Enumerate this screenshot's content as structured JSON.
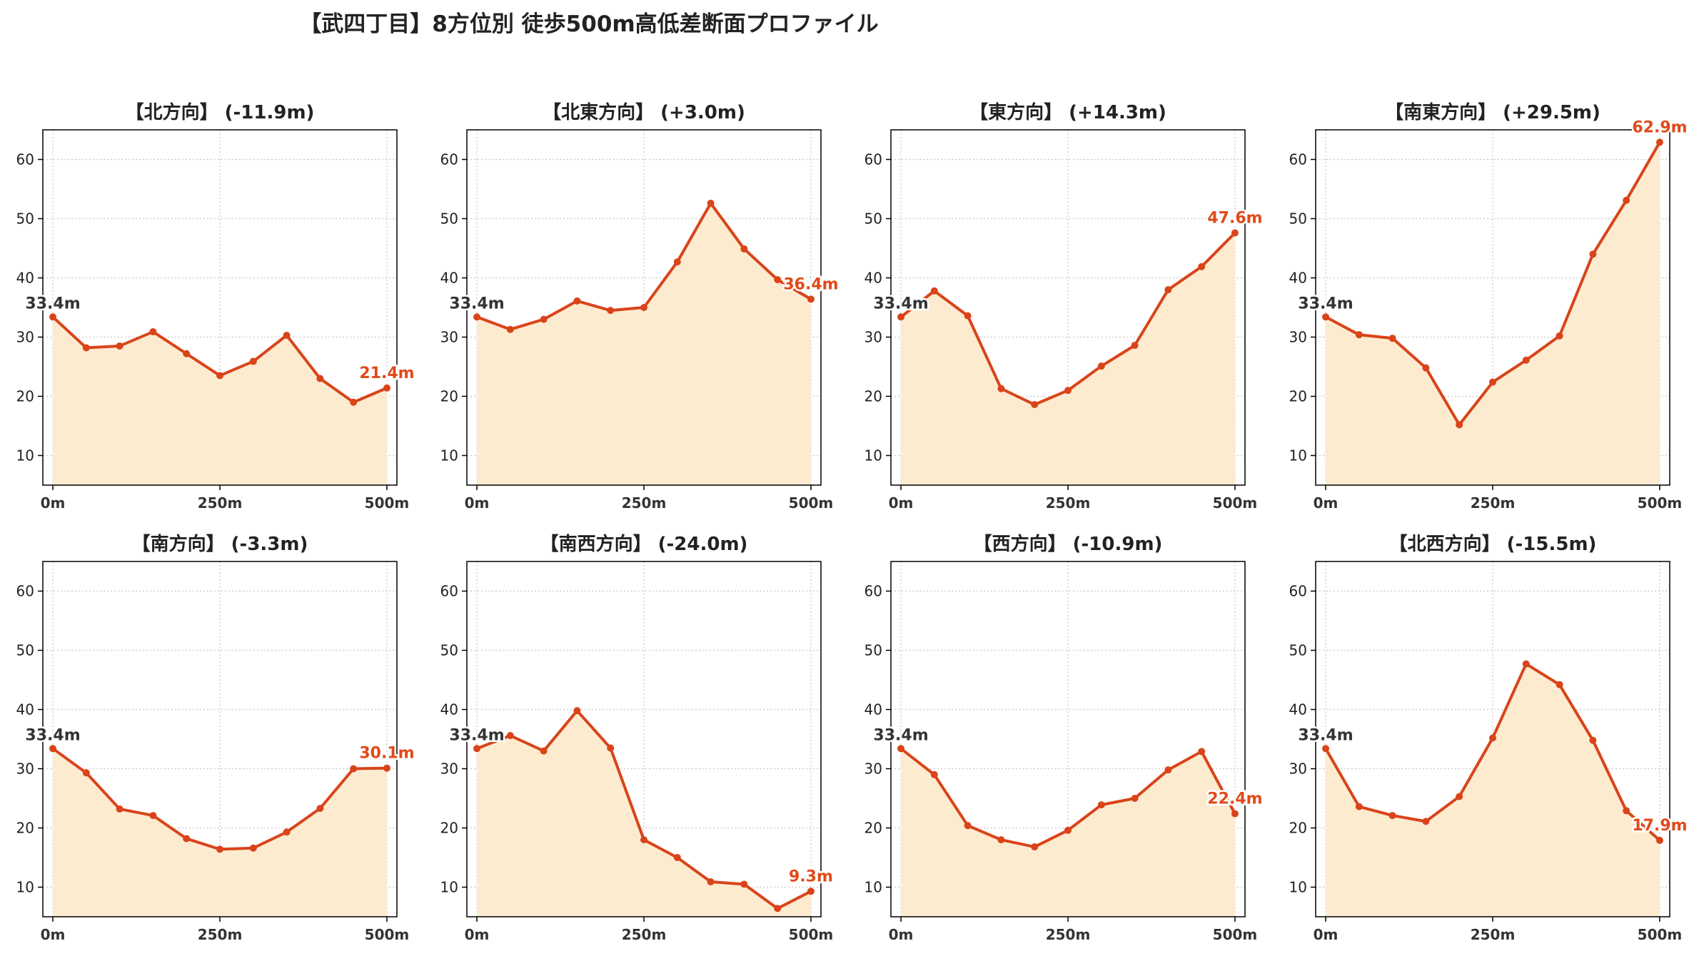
{
  "title": "【武四丁目】8方位別 徒歩500m高低差断面プロファイル",
  "colors": {
    "line": "#d9441a",
    "fill": "#fdebd0",
    "start_label": "#333333",
    "end_label": "#e04a1a",
    "grid": "#c8c8c8"
  },
  "chart_data": [
    {
      "type": "line",
      "title": "【北方向】 (-11.9m)",
      "x": [
        0,
        50,
        100,
        150,
        200,
        250,
        300,
        350,
        400,
        450,
        500
      ],
      "values": [
        33.4,
        28.2,
        28.5,
        30.9,
        27.2,
        23.5,
        25.9,
        30.3,
        23.0,
        19.0,
        21.4
      ],
      "start_label": "33.4m",
      "end_label": "21.4m",
      "xticks": [
        "0m",
        "250m",
        "500m"
      ],
      "yticks": [
        10,
        20,
        30,
        40,
        50,
        60
      ],
      "xlim": [
        -15,
        515
      ],
      "ylim": [
        5,
        65
      ],
      "grid": true
    },
    {
      "type": "line",
      "title": "【北東方向】 (+3.0m)",
      "x": [
        0,
        50,
        100,
        150,
        200,
        250,
        300,
        350,
        400,
        450,
        500
      ],
      "values": [
        33.4,
        31.3,
        33.0,
        36.1,
        34.5,
        35.0,
        42.7,
        52.6,
        44.9,
        39.7,
        36.4
      ],
      "start_label": "33.4m",
      "end_label": "36.4m",
      "xticks": [
        "0m",
        "250m",
        "500m"
      ],
      "yticks": [
        10,
        20,
        30,
        40,
        50,
        60
      ],
      "xlim": [
        -15,
        515
      ],
      "ylim": [
        5,
        65
      ],
      "grid": true
    },
    {
      "type": "line",
      "title": "【東方向】 (+14.3m)",
      "x": [
        0,
        50,
        100,
        150,
        200,
        250,
        300,
        350,
        400,
        450,
        500
      ],
      "values": [
        33.4,
        37.8,
        33.6,
        21.3,
        18.6,
        21.0,
        25.1,
        28.6,
        38.0,
        41.9,
        47.6
      ],
      "start_label": "33.4m",
      "end_label": "47.6m",
      "xticks": [
        "0m",
        "250m",
        "500m"
      ],
      "yticks": [
        10,
        20,
        30,
        40,
        50,
        60
      ],
      "xlim": [
        -15,
        515
      ],
      "ylim": [
        5,
        65
      ],
      "grid": true
    },
    {
      "type": "line",
      "title": "【南東方向】 (+29.5m)",
      "x": [
        0,
        50,
        100,
        150,
        200,
        250,
        300,
        350,
        400,
        450,
        500
      ],
      "values": [
        33.4,
        30.4,
        29.8,
        24.8,
        15.2,
        22.4,
        26.1,
        30.2,
        44.0,
        53.1,
        62.9
      ],
      "start_label": "33.4m",
      "end_label": "62.9m",
      "xticks": [
        "0m",
        "250m",
        "500m"
      ],
      "yticks": [
        10,
        20,
        30,
        40,
        50,
        60
      ],
      "xlim": [
        -15,
        515
      ],
      "ylim": [
        5,
        65
      ],
      "grid": true
    },
    {
      "type": "line",
      "title": "【南方向】 (-3.3m)",
      "x": [
        0,
        50,
        100,
        150,
        200,
        250,
        300,
        350,
        400,
        450,
        500
      ],
      "values": [
        33.4,
        29.3,
        23.2,
        22.1,
        18.2,
        16.4,
        16.6,
        19.3,
        23.3,
        30.0,
        30.1
      ],
      "start_label": "33.4m",
      "end_label": "30.1m",
      "xticks": [
        "0m",
        "250m",
        "500m"
      ],
      "yticks": [
        10,
        20,
        30,
        40,
        50,
        60
      ],
      "xlim": [
        -15,
        515
      ],
      "ylim": [
        5,
        65
      ],
      "grid": true
    },
    {
      "type": "line",
      "title": "【南西方向】 (-24.0m)",
      "x": [
        0,
        50,
        100,
        150,
        200,
        250,
        300,
        350,
        400,
        450,
        500
      ],
      "values": [
        33.4,
        35.6,
        33.0,
        39.8,
        33.5,
        18.0,
        15.0,
        10.9,
        10.5,
        6.4,
        9.3
      ],
      "start_label": "33.4m",
      "end_label": "9.3m",
      "xticks": [
        "0m",
        "250m",
        "500m"
      ],
      "yticks": [
        10,
        20,
        30,
        40,
        50,
        60
      ],
      "xlim": [
        -15,
        515
      ],
      "ylim": [
        5,
        65
      ],
      "grid": true
    },
    {
      "type": "line",
      "title": "【西方向】 (-10.9m)",
      "x": [
        0,
        50,
        100,
        150,
        200,
        250,
        300,
        350,
        400,
        450,
        500
      ],
      "values": [
        33.4,
        29.0,
        20.4,
        18.0,
        16.8,
        19.6,
        23.9,
        25.0,
        29.8,
        32.9,
        22.4
      ],
      "start_label": "33.4m",
      "end_label": "22.4m",
      "xticks": [
        "0m",
        "250m",
        "500m"
      ],
      "yticks": [
        10,
        20,
        30,
        40,
        50,
        60
      ],
      "xlim": [
        -15,
        515
      ],
      "ylim": [
        5,
        65
      ],
      "grid": true
    },
    {
      "type": "line",
      "title": "【北西方向】 (-15.5m)",
      "x": [
        0,
        50,
        100,
        150,
        200,
        250,
        300,
        350,
        400,
        450,
        500
      ],
      "values": [
        33.4,
        23.6,
        22.1,
        21.1,
        25.3,
        35.2,
        47.7,
        44.2,
        34.8,
        22.9,
        17.9
      ],
      "start_label": "33.4m",
      "end_label": "17.9m",
      "xticks": [
        "0m",
        "250m",
        "500m"
      ],
      "yticks": [
        10,
        20,
        30,
        40,
        50,
        60
      ],
      "xlim": [
        -15,
        515
      ],
      "ylim": [
        5,
        65
      ],
      "grid": true
    }
  ]
}
